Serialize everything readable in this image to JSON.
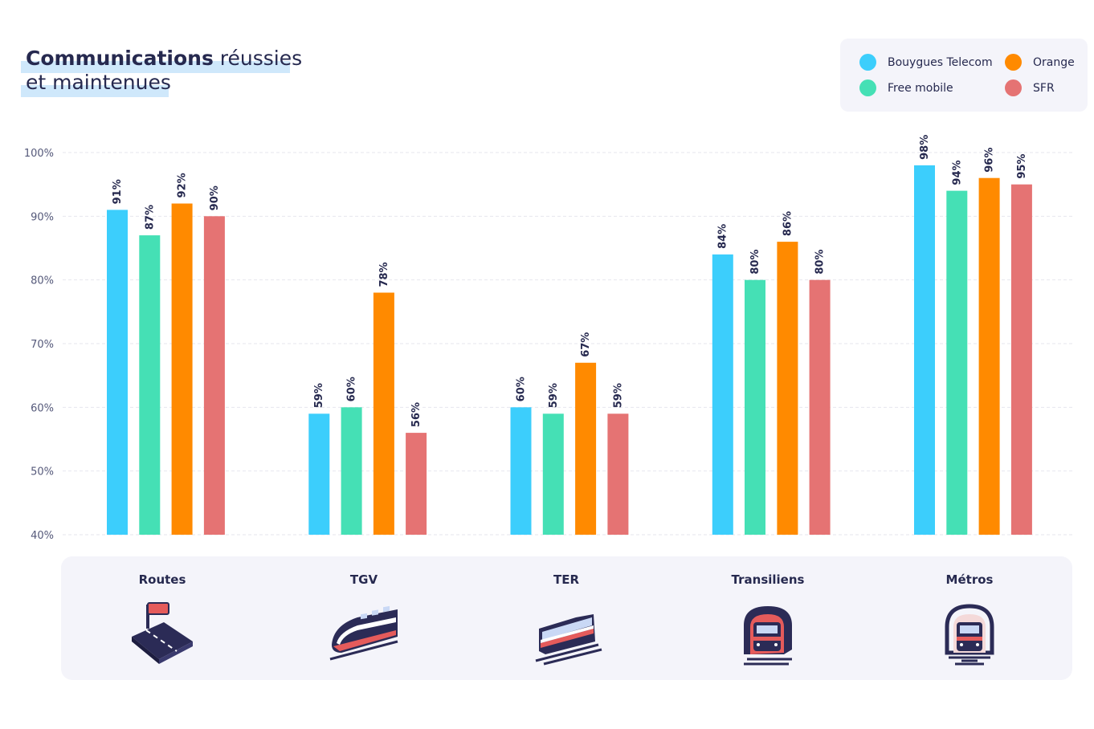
{
  "title": {
    "bold": "Communications",
    "rest1": " réussies",
    "line2": "et maintenues"
  },
  "legend": [
    {
      "name": "Bouygues Telecom",
      "color": "#3ccefc"
    },
    {
      "name": "Orange",
      "color": "#ff8a00"
    },
    {
      "name": "Free mobile",
      "color": "#45e0b5"
    },
    {
      "name": "SFR",
      "color": "#e57373"
    }
  ],
  "icons": [
    "road-icon",
    "tgv-train-icon",
    "ter-train-icon",
    "transilien-train-icon",
    "metro-train-icon"
  ],
  "chart_data": {
    "type": "bar",
    "title": "Communications réussies et maintenues",
    "categories": [
      "Routes",
      "TGV",
      "TER",
      "Transiliens",
      "Métros"
    ],
    "ylim": [
      40,
      100
    ],
    "yticks": [
      "40%",
      "50%",
      "60%",
      "70%",
      "80%",
      "90%",
      "100%"
    ],
    "grid": true,
    "legend_position": "top-right",
    "series": [
      {
        "name": "Bouygues Telecom",
        "color": "#3ccefc",
        "values": [
          91,
          59,
          60,
          84,
          98
        ],
        "labels": [
          "91%",
          "59%",
          "60%",
          "84%",
          "98%"
        ]
      },
      {
        "name": "Free mobile",
        "color": "#45e0b5",
        "values": [
          87,
          60,
          59,
          80,
          94
        ],
        "labels": [
          "87%",
          "60%",
          "59%",
          "80%",
          "94%"
        ]
      },
      {
        "name": "Orange",
        "color": "#ff8a00",
        "values": [
          92,
          78,
          67,
          86,
          96
        ],
        "labels": [
          "92%",
          "78%",
          "67%",
          "86%",
          "96%"
        ]
      },
      {
        "name": "SFR",
        "color": "#e57373",
        "values": [
          90,
          56,
          59,
          80,
          95
        ],
        "labels": [
          "90%",
          "56%",
          "59%",
          "80%",
          "95%"
        ]
      }
    ]
  }
}
